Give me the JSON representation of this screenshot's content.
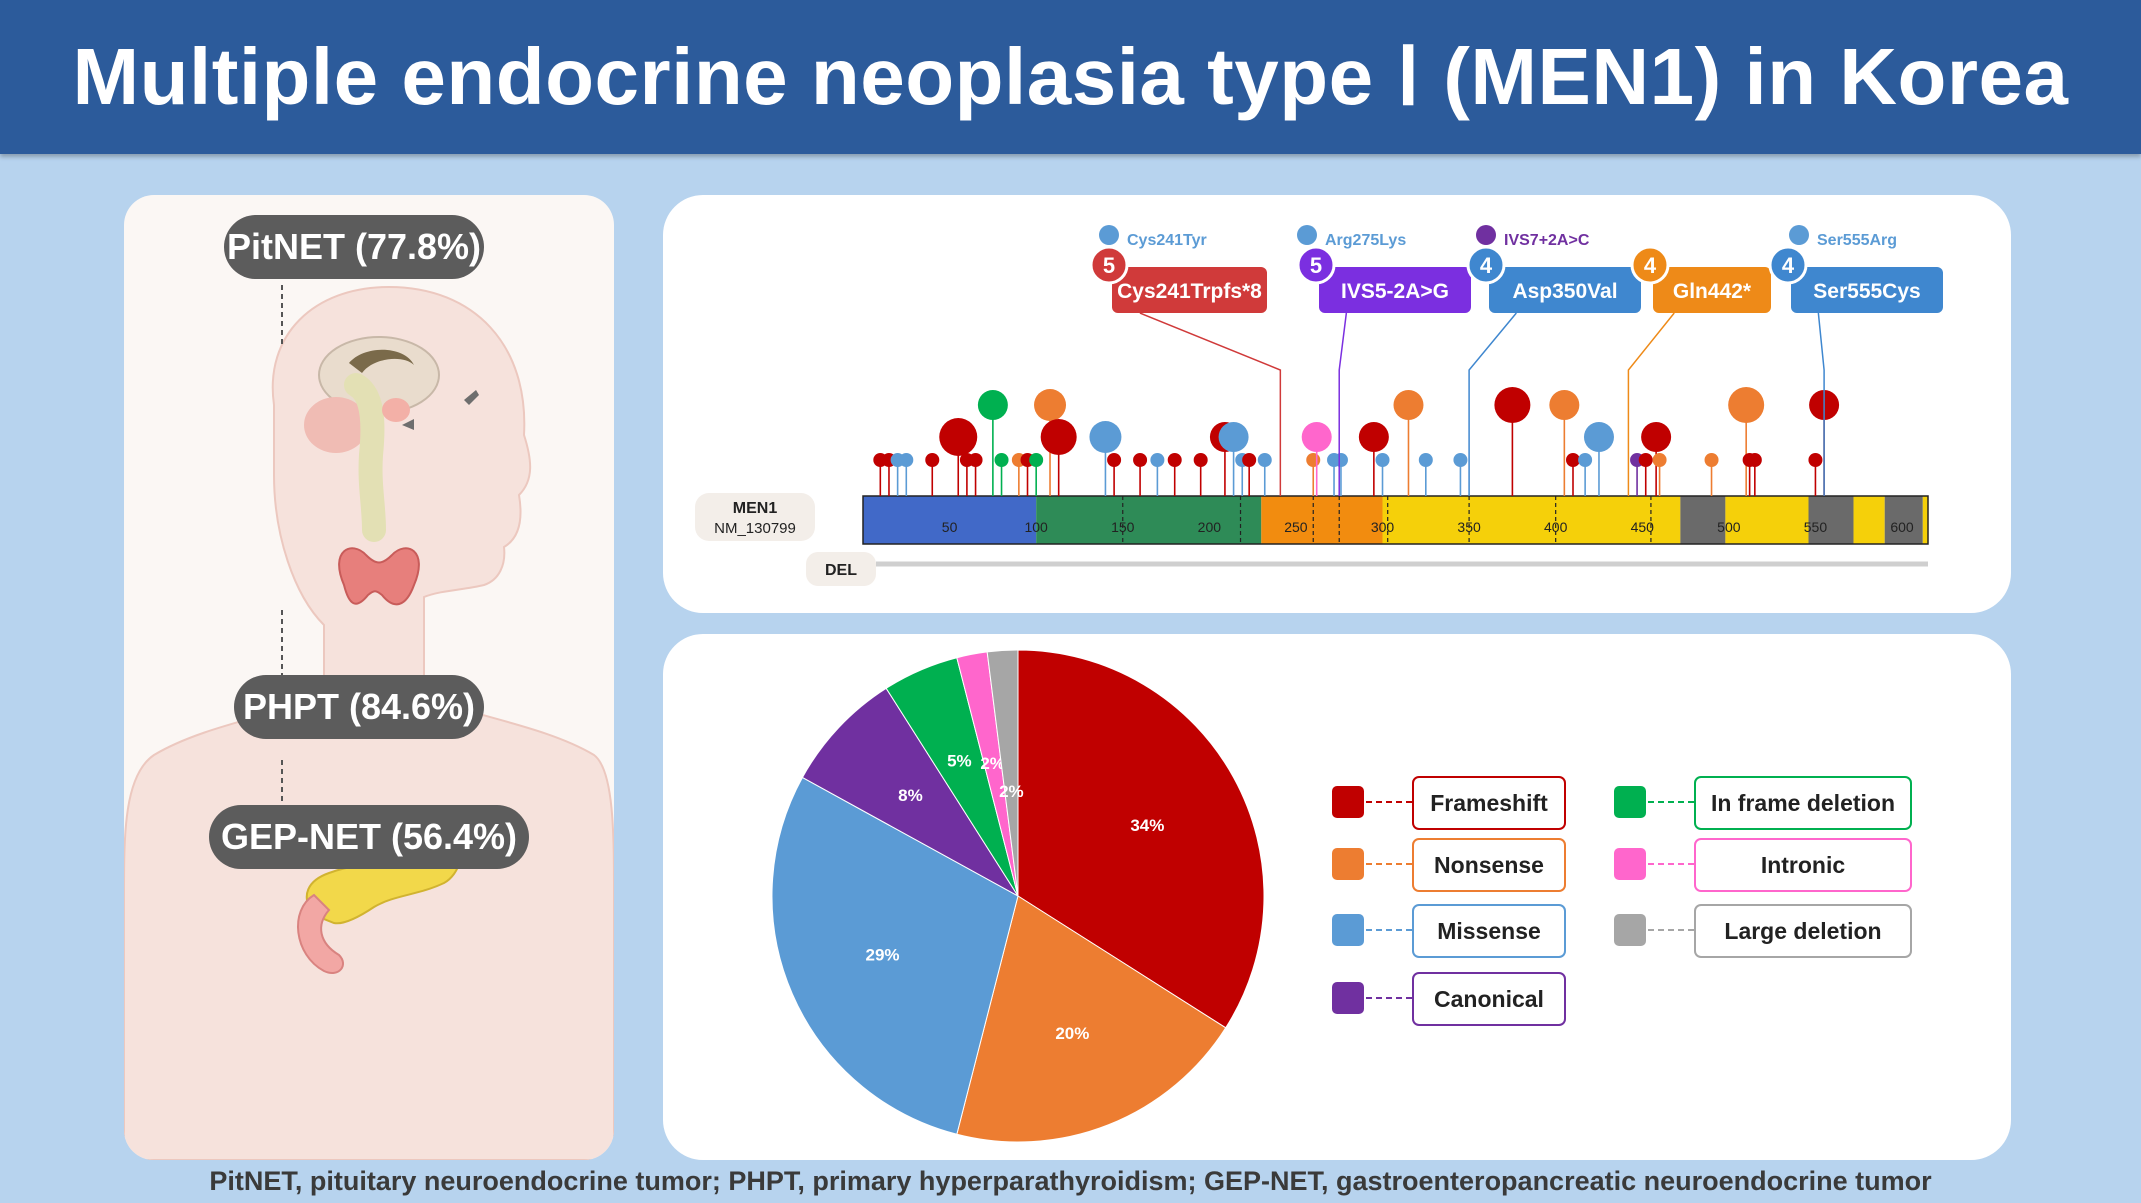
{
  "title": "Multiple endocrine neoplasia type Ⅰ (MEN1) in Korea",
  "footer": "PitNET, pituitary neuroendocrine tumor; PHPT, primary hyperparathyroidism; GEP-NET, gastroenteropancreatic neuroendocrine tumor",
  "organs": [
    {
      "label": "PitNET (77.8%)"
    },
    {
      "label": "PHPT  (84.6%)"
    },
    {
      "label": "GEP-NET  (56.4%)"
    }
  ],
  "colors": {
    "header": "#2c5b9b",
    "background": "#b7d3ee",
    "frameshift": "#c00000",
    "nonsense": "#ed7d31",
    "missense": "#5b9bd5",
    "canonical": "#7030a0",
    "in_frame_deletion": "#00b050",
    "intronic": "#ff66cc",
    "large_deletion": "#a6a6a6"
  },
  "lollipop": {
    "gene": "MEN1",
    "transcript": "NM_130799",
    "del_label": "DEL",
    "ticks": [
      "50",
      "100",
      "150",
      "200",
      "250",
      "300",
      "350",
      "400",
      "450",
      "500",
      "550",
      "600"
    ],
    "top_labels": [
      {
        "text": "Cys241Tyr",
        "color": "#5b9bd5"
      },
      {
        "text": "Arg275Lys",
        "color": "#5b9bd5"
      },
      {
        "text": "IVS7+2A>C",
        "color": "#7030a0"
      },
      {
        "text": "Ser555Arg",
        "color": "#5b9bd5"
      }
    ],
    "hotspots": [
      {
        "count": "5",
        "label": "Cys241Trpfs*8",
        "color": "#d03a3a",
        "position": 241
      },
      {
        "count": "5",
        "label": "IVS5-2A>G",
        "color": "#7b2fe0",
        "position": 275
      },
      {
        "count": "4",
        "label": "Asp350Val",
        "color": "#3f87cf",
        "position": 350
      },
      {
        "count": "4",
        "label": "Gln442*",
        "color": "#ee8a18",
        "position": 442
      },
      {
        "count": "4",
        "label": "Ser555Cys",
        "color": "#3f87cf",
        "position": 555
      }
    ]
  },
  "chart_data": {
    "type": "pie",
    "title": "",
    "slices": [
      {
        "label": "Frameshift",
        "value": 34,
        "text": "34%",
        "color": "#c00000"
      },
      {
        "label": "Nonsense",
        "value": 20,
        "text": "20%",
        "color": "#ed7d31"
      },
      {
        "label": "Missense",
        "value": 29,
        "text": "29%",
        "color": "#5b9bd5"
      },
      {
        "label": "Canonical",
        "value": 8,
        "text": "8%",
        "color": "#7030a0"
      },
      {
        "label": "In frame deletion",
        "value": 5,
        "text": "5%",
        "color": "#00b050"
      },
      {
        "label": "Intronic",
        "value": 2,
        "text": "2%",
        "color": "#ff66cc"
      },
      {
        "label": "Large deletion",
        "value": 2,
        "text": "2%",
        "color": "#a6a6a6"
      }
    ],
    "legend": [
      "Frameshift",
      "Nonsense",
      "Missense",
      "Canonical",
      "In frame deletion",
      "Intronic",
      "Large deletion"
    ],
    "legend_position": "right"
  }
}
